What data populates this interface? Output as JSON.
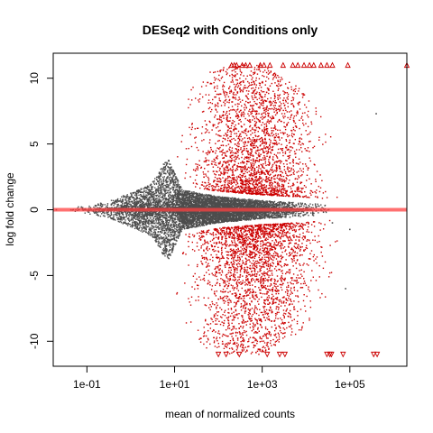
{
  "chart_data": {
    "type": "scatter",
    "title": "DESeq2 with Conditions only",
    "xlabel": "mean of normalized counts",
    "ylabel": "log fold change",
    "x_scale": "log",
    "xlim": [
      0.017,
      2000000
    ],
    "ylim": [
      -11.9,
      11.9
    ],
    "x_ticks": [
      {
        "value": 0.1,
        "label": "1e-01"
      },
      {
        "value": 10,
        "label": "1e+01"
      },
      {
        "value": 1000,
        "label": "1e+03"
      },
      {
        "value": 100000,
        "label": "1e+05"
      }
    ],
    "y_ticks": [
      {
        "value": 10,
        "label": "10"
      },
      {
        "value": 5,
        "label": "5"
      },
      {
        "value": 0,
        "label": "0"
      },
      {
        "value": -5,
        "label": "-5"
      },
      {
        "value": -10,
        "label": "-10"
      }
    ],
    "reference_line": {
      "y": 0,
      "color": "#ff4040"
    },
    "colors": {
      "not_significant": "#4d4d4d",
      "significant": "#cc0000"
    },
    "grid": false,
    "legend": "none",
    "series": [
      {
        "significance": "not significant",
        "color": "#4d4d4d",
        "marker": "point",
        "x_range": [
          0.03,
          60000
        ],
        "envelope_points": [
          {
            "x": 0.03,
            "y_max": 0.1
          },
          {
            "x": 0.1,
            "y_max": 0.3
          },
          {
            "x": 0.3,
            "y_max": 0.6
          },
          {
            "x": 1,
            "y_max": 1.3
          },
          {
            "x": 3,
            "y_max": 2.0
          },
          {
            "x": 7,
            "y_max": 4.0
          },
          {
            "x": 15,
            "y_max": 1.5
          },
          {
            "x": 100,
            "y_max": 1.0
          },
          {
            "x": 1000,
            "y_max": 0.7
          },
          {
            "x": 10000,
            "y_max": 0.5
          },
          {
            "x": 60000,
            "y_max": 0.3
          }
        ],
        "approx_point_count": 9000
      },
      {
        "significance": "significant",
        "color": "#cc0000",
        "marker": "point",
        "x_range": [
          8,
          60000
        ],
        "envelope_points": [
          {
            "x": 8,
            "y_max": 6.0
          },
          {
            "x": 20,
            "y_max": 9.0
          },
          {
            "x": 50,
            "y_max": 10.5
          },
          {
            "x": 200,
            "y_max": 11.0
          },
          {
            "x": 1000,
            "y_max": 11.0
          },
          {
            "x": 10000,
            "y_max": 9.0
          },
          {
            "x": 60000,
            "y_max": 5.0
          }
        ],
        "approx_point_count": 5000
      },
      {
        "significance": "significant, clipped above range",
        "color": "#cc0000",
        "marker": "triangle-up",
        "y": 11,
        "x": [
          200,
          230,
          260,
          350,
          420,
          520,
          900,
          1100,
          1500,
          3000,
          5000,
          6500,
          9000,
          12000,
          15000,
          22000,
          30000,
          40000,
          90000,
          2000000
        ]
      },
      {
        "significance": "significant, clipped below range",
        "color": "#cc0000",
        "marker": "triangle-down",
        "y": -11,
        "x": [
          100,
          150,
          300,
          1300,
          2500,
          3300,
          30000,
          35000,
          38000,
          70000,
          350000,
          420000
        ]
      },
      {
        "significance": "outliers",
        "color": "#4d4d4d",
        "marker": "point",
        "points": [
          [
            0.02,
            0
          ],
          [
            400000,
            7.3
          ],
          [
            80000,
            -6.0
          ],
          [
            40000,
            -1.0
          ],
          [
            100000,
            -1.5
          ]
        ]
      }
    ]
  }
}
